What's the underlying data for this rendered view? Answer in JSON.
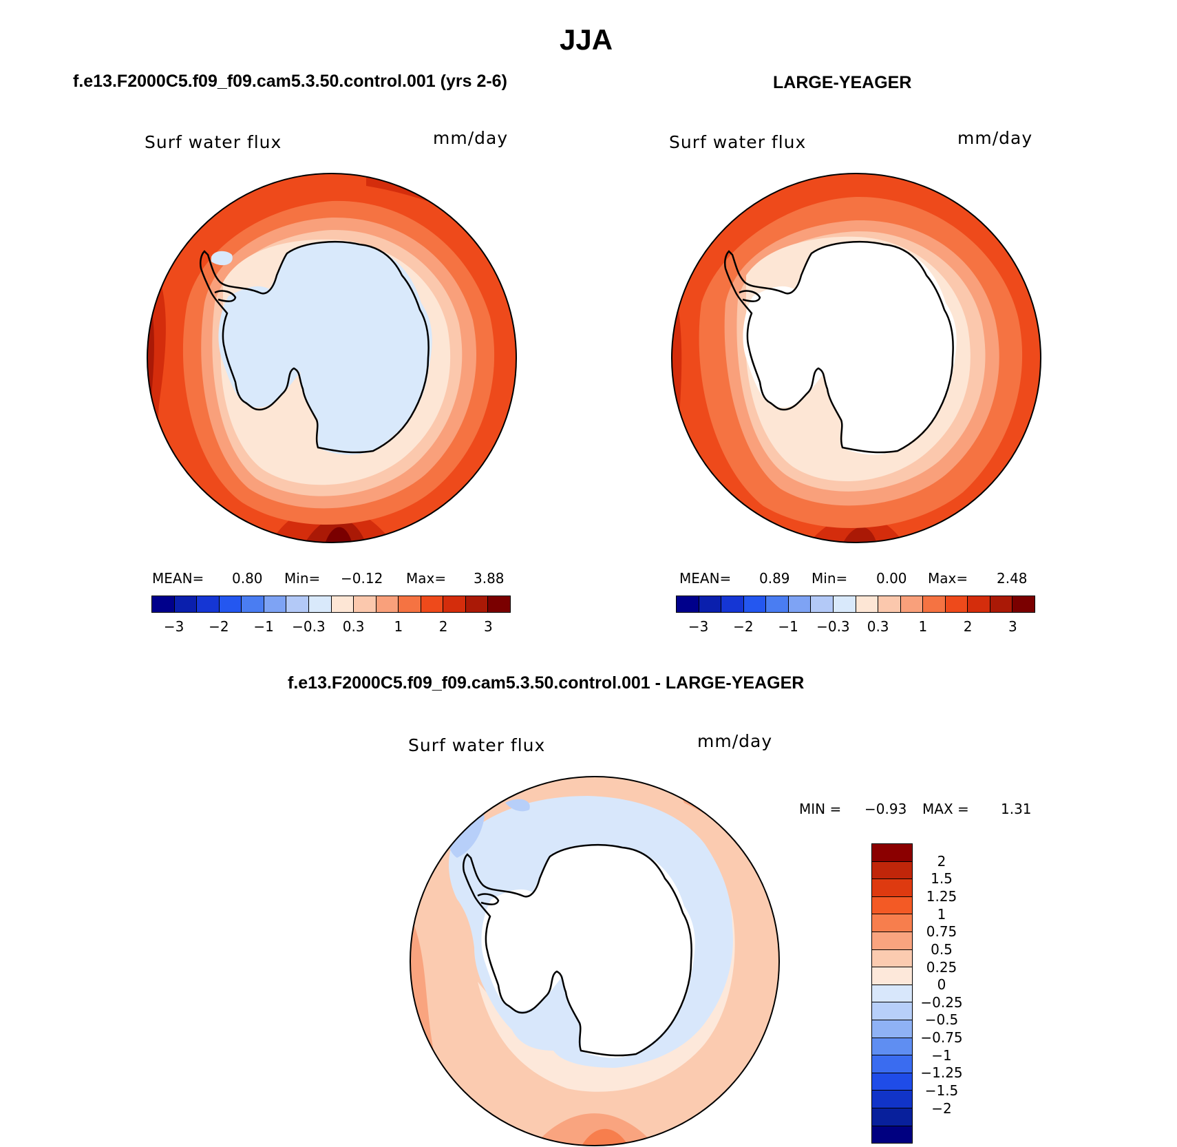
{
  "page_title": "JJA",
  "panels": [
    {
      "title": "f.e13.F2000C5.f09_f09.cam5.3.50.control.001 (yrs 2-6)",
      "variable": "Surf water flux",
      "units": "mm/day",
      "stats": {
        "mean_label": "MEAN=",
        "mean": "0.80",
        "min_label": "Min=",
        "min": "−0.12",
        "max_label": "Max=",
        "max": "3.88"
      }
    },
    {
      "title": "LARGE-YEAGER",
      "variable": "Surf water flux",
      "units": "mm/day",
      "stats": {
        "mean_label": "MEAN=",
        "mean": "0.89",
        "min_label": "Min=",
        "min": "0.00",
        "max_label": "Max=",
        "max": "2.48"
      }
    },
    {
      "title": "f.e13.F2000C5.f09_f09.cam5.3.50.control.001 - LARGE-YEAGER",
      "variable": "Surf water flux",
      "units": "mm/day",
      "stats": {
        "min_label": "MIN =",
        "min": "−0.93",
        "max_label": "MAX =",
        "max": "1.31"
      }
    }
  ],
  "colorbar_main": {
    "colors": [
      "#00008b",
      "#0a1fad",
      "#1536d4",
      "#2457f0",
      "#4a7df2",
      "#7ea3f4",
      "#b3c9f7",
      "#d9e9fb",
      "#fde6d5",
      "#fbc8ad",
      "#f9a07b",
      "#f57342",
      "#ee4a1b",
      "#d42d0c",
      "#aa1906",
      "#7a0000"
    ],
    "ticks": [
      "−3",
      "−2",
      "−1",
      "−0.3",
      "0.3",
      "1",
      "2",
      "3"
    ]
  },
  "colorbar_diff": {
    "colors": [
      "#8b0000",
      "#c0260a",
      "#de3a10",
      "#f35a25",
      "#f77e4d",
      "#f9a47f",
      "#fbcbb0",
      "#fde8da",
      "#d8e7fb",
      "#b7cff9",
      "#8fb2f5",
      "#5f8ef2",
      "#3a6cf0",
      "#1f4ce8",
      "#1134c8",
      "#08209c",
      "#000080"
    ],
    "ticks": [
      "2",
      "1.5",
      "1.25",
      "1",
      "0.75",
      "0.5",
      "0.25",
      "0",
      "−0.25",
      "−0.5",
      "−0.75",
      "−1",
      "−1.25",
      "−1.5",
      "−2"
    ]
  }
}
